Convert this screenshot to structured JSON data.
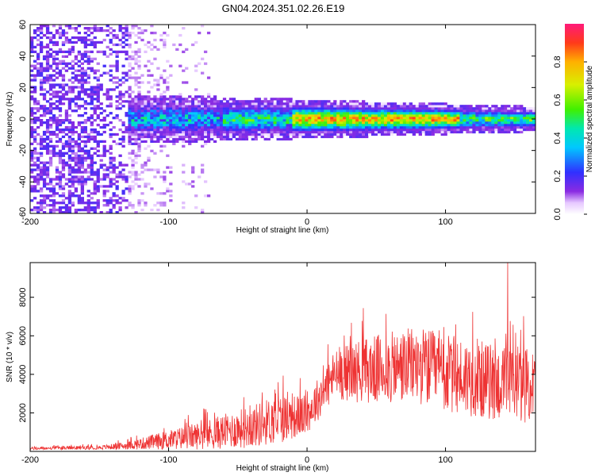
{
  "title": "GN04.2024.351.02.26.E19",
  "chart_data": [
    {
      "type": "heatmap",
      "xlabel": "Height of straight line (km)",
      "ylabel": "Frequency (Hz)",
      "xlim": [
        -200,
        165
      ],
      "ylim": [
        -60,
        60
      ],
      "xticks": [
        -200,
        -100,
        0,
        100
      ],
      "yticks": [
        -60,
        -40,
        -20,
        0,
        20,
        40,
        60
      ],
      "colorbar": {
        "label": "Normalized spectral amplitude",
        "range": [
          0,
          1
        ],
        "ticks": [
          0.0,
          0.2,
          0.4,
          0.6,
          0.8
        ]
      },
      "features": {
        "noise_region_x": [
          -200,
          -70
        ],
        "band_start_x": -130,
        "band_center_freq": 0,
        "band_halfwidth_start": 10,
        "band_halfwidth_end": 5,
        "peak_region_x": [
          -10,
          110
        ]
      }
    },
    {
      "type": "line",
      "xlabel": "Height of straight line (km)",
      "ylabel": "SNR (10 * v/v)",
      "xlim": [
        -200,
        165
      ],
      "ylim": [
        0,
        9800
      ],
      "xticks": [
        -200,
        -100,
        0,
        100
      ],
      "yticks": [
        2000,
        4000,
        6000,
        8000
      ],
      "series": [
        {
          "color": "#ee3333",
          "envelope_x": [
            -200,
            -150,
            -130,
            -100,
            -70,
            -40,
            -20,
            0,
            20,
            40,
            60,
            80,
            100,
            120,
            140,
            165
          ],
          "envelope_mean": [
            150,
            200,
            300,
            600,
            900,
            1300,
            1700,
            1900,
            4000,
            4200,
            4300,
            4500,
            4000,
            3800,
            3500,
            3400
          ],
          "envelope_spread": [
            80,
            100,
            200,
            500,
            800,
            1100,
            1300,
            1000,
            1300,
            1700,
            1900,
            2000,
            2100,
            2000,
            2000,
            1900
          ],
          "peak_x": 145,
          "peak_y": 9800
        }
      ]
    }
  ]
}
